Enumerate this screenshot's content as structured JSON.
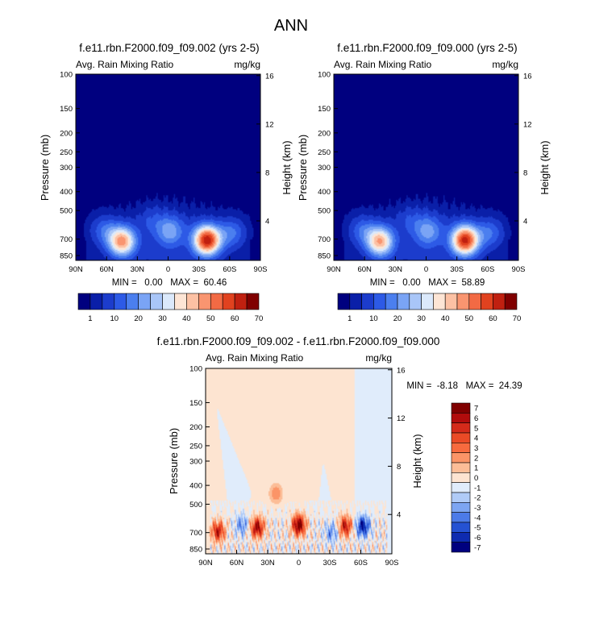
{
  "figure_title": "ANN",
  "chart_data": [
    {
      "type": "heatmap",
      "title": "f.e11.rbn.F2000.f09_f09.002 (yrs 2-5)",
      "subtitle_left": "Avg. Rain Mixing Ratio",
      "subtitle_right": "mg/kg",
      "xlabel": "",
      "ylabel": "Pressure (mb)",
      "ylabel_right": "Height (km)",
      "x_ticks": [
        "90N",
        "60N",
        "30N",
        "0",
        "30S",
        "60S",
        "90S"
      ],
      "y_ticks": [
        "100",
        "150",
        "200",
        "250",
        "300",
        "400",
        "500",
        "700",
        "850"
      ],
      "y_ticks_right": [
        "16",
        "12",
        "8",
        "4"
      ],
      "stats": "MIN =   0.00   MAX =  60.46",
      "colorbar_labels": [
        "1",
        "10",
        "20",
        "30",
        "40",
        "50",
        "60",
        "70"
      ],
      "blobs": [
        {
          "lat": -38,
          "p": 710,
          "value": 60.5
        },
        {
          "lat": 45,
          "p": 720,
          "value": 45
        },
        {
          "lat": -2,
          "p": 640,
          "value": 18
        },
        {
          "lat": 62,
          "p": 630,
          "value": 12
        },
        {
          "lat": -62,
          "p": 650,
          "value": 14
        },
        {
          "lat": 15,
          "p": 560,
          "value": 6
        }
      ]
    },
    {
      "type": "heatmap",
      "title": "f.e11.rbn.F2000.f09_f09.000 (yrs 2-5)",
      "subtitle_left": "Avg. Rain Mixing Ratio",
      "subtitle_right": "mg/kg",
      "xlabel": "",
      "ylabel": "Pressure (mb)",
      "ylabel_right": "Height (km)",
      "x_ticks": [
        "90N",
        "60N",
        "30N",
        "0",
        "30S",
        "60S",
        "90S"
      ],
      "y_ticks": [
        "100",
        "150",
        "200",
        "250",
        "300",
        "400",
        "500",
        "700",
        "850"
      ],
      "y_ticks_right": [
        "16",
        "12",
        "8",
        "4"
      ],
      "stats": "MIN =   0.00   MAX =  58.89",
      "colorbar_labels": [
        "1",
        "10",
        "20",
        "30",
        "40",
        "50",
        "60",
        "70"
      ],
      "blobs": [
        {
          "lat": -38,
          "p": 710,
          "value": 58.9
        },
        {
          "lat": 45,
          "p": 720,
          "value": 42
        },
        {
          "lat": -2,
          "p": 640,
          "value": 17
        },
        {
          "lat": 62,
          "p": 630,
          "value": 12
        },
        {
          "lat": -62,
          "p": 650,
          "value": 13
        },
        {
          "lat": 15,
          "p": 560,
          "value": 6
        }
      ]
    },
    {
      "type": "heatmap",
      "title": "f.e11.rbn.F2000.f09_f09.002 - f.e11.rbn.F2000.f09_f09.000",
      "subtitle_left": "Avg. Rain Mixing Ratio",
      "subtitle_right": "mg/kg",
      "xlabel": "",
      "ylabel": "Pressure (mb)",
      "ylabel_right": "Height (km)",
      "x_ticks": [
        "90N",
        "60N",
        "30N",
        "0",
        "30S",
        "60S",
        "90S"
      ],
      "y_ticks": [
        "100",
        "150",
        "200",
        "250",
        "300",
        "400",
        "500",
        "700",
        "850"
      ],
      "y_ticks_right": [
        "16",
        "12",
        "8",
        "4"
      ],
      "stats": "MIN =  -8.18   MAX =  24.39",
      "colorbar_labels": [
        "7",
        "6",
        "5",
        "4",
        "3",
        "2",
        "1",
        "0",
        "-1",
        "-2",
        "-3",
        "-4",
        "-5",
        "-6",
        "-7"
      ],
      "blobs": [
        {
          "lat": 0,
          "p": 640,
          "value": 8
        },
        {
          "lat": 40,
          "p": 660,
          "value": 7
        },
        {
          "lat": 78,
          "p": 690,
          "value": 6
        },
        {
          "lat": -45,
          "p": 650,
          "value": 6
        },
        {
          "lat": -62,
          "p": 650,
          "value": -6
        },
        {
          "lat": -32,
          "p": 700,
          "value": -3
        },
        {
          "lat": 55,
          "p": 640,
          "value": -3
        },
        {
          "lat": 22,
          "p": 440,
          "value": 3
        }
      ]
    }
  ],
  "colors": {
    "abs_scale": [
      "#00007f",
      "#0a1fa8",
      "#1c3ccc",
      "#2d5ae6",
      "#4b7fef",
      "#7aa4f5",
      "#a9c6f8",
      "#dbe9fb",
      "#fde5d5",
      "#fcc1a4",
      "#f99570",
      "#f26a44",
      "#e1421f",
      "#c02010",
      "#800000"
    ],
    "diff_scale": [
      "#800000",
      "#b10c0c",
      "#d42a1a",
      "#ea4a26",
      "#f76a3e",
      "#fb9467",
      "#fcbd97",
      "#fde4d1",
      "#e0ecfb",
      "#b0cbf7",
      "#7da5f2",
      "#4c7be8",
      "#2552d3",
      "#0e2bb0",
      "#00007f"
    ]
  }
}
